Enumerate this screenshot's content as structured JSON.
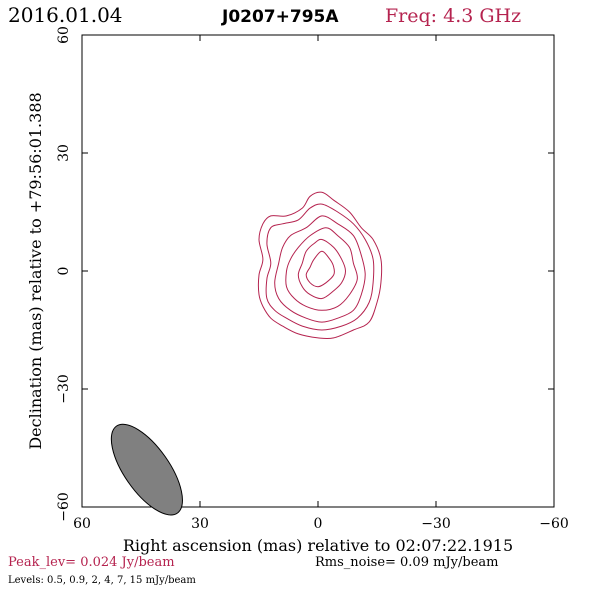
{
  "header": {
    "date": "2016.01.04",
    "source": "J0207+795A",
    "freq": "Freq: 4.3 GHz"
  },
  "footer": {
    "peak": "Peak_lev=  0.024 Jy/beam",
    "rms": "Rms_noise= 0.09 mJy/beam",
    "levels": "Levels: 0.5, 0.9,   2,   4,   7,  15 mJy/beam"
  },
  "colors": {
    "accent": "#b5234f",
    "contour": "#b5234f",
    "beam_fill": "#808080",
    "axis": "#000000"
  },
  "chart_data": {
    "type": "contour",
    "title": "J0207+795A",
    "xlabel": "Right ascension (mas) relative to 02:07:22.1915",
    "ylabel": "Declination (mas) relative to +79:56:01.388",
    "xlim": [
      60,
      -60
    ],
    "ylim": [
      -60,
      60
    ],
    "xticks": [
      60,
      30,
      0,
      -30,
      -60
    ],
    "yticks": [
      -60,
      -30,
      0,
      30,
      60
    ],
    "xtick_labels": [
      "60",
      "30",
      "0",
      "−30",
      "−60"
    ],
    "ytick_labels": [
      "−60",
      "−30",
      "0",
      "30",
      "60"
    ],
    "contour_levels_mJy": [
      0.5,
      0.9,
      2,
      4,
      7,
      15
    ],
    "peak_Jy_per_beam": 0.024,
    "rms_noise_mJy_per_beam": 0.09,
    "beam": {
      "center": [
        43.5,
        -50.5
      ],
      "major_mas": 13.5,
      "minor_mas": 5.7,
      "pa_deg": 35
    },
    "contours": [
      {
        "level_mJy": 0.5,
        "points": [
          [
            -1,
            20
          ],
          [
            -4,
            18
          ],
          [
            -8,
            15
          ],
          [
            -11,
            11
          ],
          [
            -14,
            8
          ],
          [
            -16,
            3
          ],
          [
            -16,
            -3
          ],
          [
            -15,
            -8
          ],
          [
            -13,
            -13
          ],
          [
            -9,
            -15
          ],
          [
            -4,
            -17
          ],
          [
            0,
            -17
          ],
          [
            5,
            -16
          ],
          [
            9,
            -14
          ],
          [
            12,
            -12
          ],
          [
            14,
            -9
          ],
          [
            15,
            -6
          ],
          [
            15,
            -1
          ],
          [
            14,
            3
          ],
          [
            15,
            8
          ],
          [
            14,
            12
          ],
          [
            12,
            14
          ],
          [
            8,
            14
          ],
          [
            4,
            16
          ],
          [
            2,
            19
          ]
        ]
      },
      {
        "level_mJy": 0.9,
        "points": [
          [
            -1,
            17
          ],
          [
            -5,
            15
          ],
          [
            -9,
            12
          ],
          [
            -12,
            8
          ],
          [
            -14,
            3
          ],
          [
            -14,
            -3
          ],
          [
            -13,
            -8
          ],
          [
            -10,
            -12
          ],
          [
            -6,
            -14
          ],
          [
            -1,
            -15
          ],
          [
            4,
            -14
          ],
          [
            8,
            -12
          ],
          [
            11,
            -10
          ],
          [
            13,
            -7
          ],
          [
            13,
            -2
          ],
          [
            12,
            2
          ],
          [
            13,
            7
          ],
          [
            12,
            11
          ],
          [
            9,
            12
          ],
          [
            5,
            13
          ],
          [
            2,
            16
          ]
        ]
      },
      {
        "level_mJy": 2,
        "points": [
          [
            -1,
            14
          ],
          [
            -5,
            12
          ],
          [
            -9,
            9
          ],
          [
            -11,
            4
          ],
          [
            -12,
            -1
          ],
          [
            -11,
            -6
          ],
          [
            -9,
            -10
          ],
          [
            -5,
            -12
          ],
          [
            -1,
            -13
          ],
          [
            3,
            -12
          ],
          [
            7,
            -10
          ],
          [
            10,
            -7
          ],
          [
            11,
            -3
          ],
          [
            10,
            2
          ],
          [
            9,
            6
          ],
          [
            7,
            9
          ],
          [
            3,
            11
          ]
        ]
      },
      {
        "level_mJy": 4,
        "points": [
          [
            -2,
            11
          ],
          [
            -5,
            9
          ],
          [
            -8,
            6
          ],
          [
            -9,
            2
          ],
          [
            -10,
            -2
          ],
          [
            -8,
            -6
          ],
          [
            -5,
            -9
          ],
          [
            -1,
            -10
          ],
          [
            3,
            -9
          ],
          [
            6,
            -7
          ],
          [
            8,
            -4
          ],
          [
            8,
            0
          ],
          [
            7,
            3
          ],
          [
            5,
            6
          ],
          [
            2,
            9
          ]
        ]
      },
      {
        "level_mJy": 7,
        "points": [
          [
            -1,
            8
          ],
          [
            -4,
            6
          ],
          [
            -6,
            3
          ],
          [
            -7,
            0
          ],
          [
            -6,
            -3
          ],
          [
            -4,
            -5
          ],
          [
            -1,
            -7
          ],
          [
            2,
            -6
          ],
          [
            4,
            -4
          ],
          [
            5,
            -1
          ],
          [
            4,
            2
          ],
          [
            3,
            5
          ],
          [
            1,
            7
          ]
        ]
      },
      {
        "level_mJy": 15,
        "points": [
          [
            -1,
            5
          ],
          [
            -3,
            3
          ],
          [
            -4,
            1
          ],
          [
            -4,
            -1
          ],
          [
            -2,
            -3
          ],
          [
            0,
            -4
          ],
          [
            2,
            -3
          ],
          [
            3,
            -1
          ],
          [
            2,
            1
          ],
          [
            1,
            3
          ]
        ]
      }
    ]
  }
}
